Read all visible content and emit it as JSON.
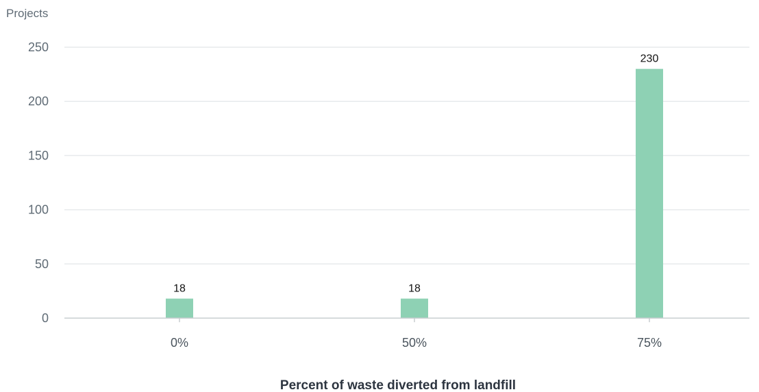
{
  "chart_data": {
    "type": "bar",
    "categories": [
      "0%",
      "50%",
      "75%"
    ],
    "values": [
      18,
      18,
      230
    ],
    "title": "",
    "xlabel": "Percent of waste diverted from landfill",
    "ylabel": "Projects",
    "ylim": [
      0,
      250
    ],
    "yticks": [
      0,
      50,
      100,
      150,
      200,
      250
    ],
    "grid": true,
    "data_labels": [
      "18",
      "18",
      "230"
    ],
    "bar_color": "#8ed1b4",
    "grid_color": "#e7eaec",
    "axis_color": "#c8cdd1"
  }
}
